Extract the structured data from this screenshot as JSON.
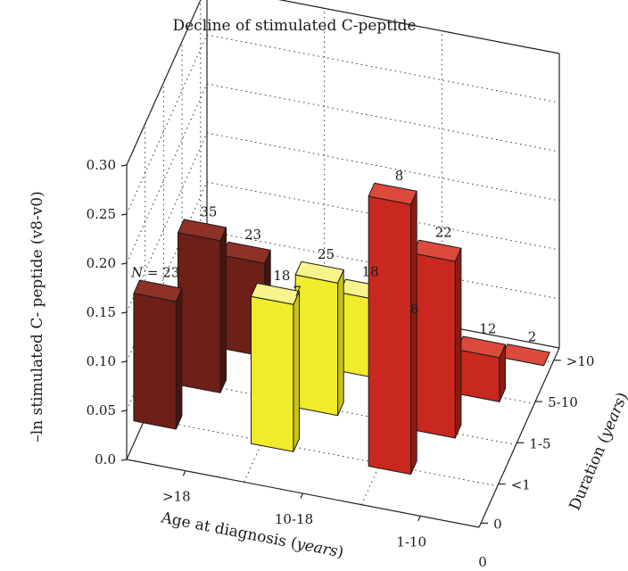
{
  "chart_data": {
    "type": "bar",
    "title": "Decline of stimulated C-peptide",
    "zlabel": "–ln stimulated C- peptide (v8-v0)",
    "xlabel": "Age at diagnosis (years)",
    "ylabel": "Duration (years)",
    "zlim": [
      0,
      0.3
    ],
    "z_ticks": [
      "0.0",
      "0.05",
      "0.10",
      "0.15",
      "0.20",
      "0.25",
      "0.30"
    ],
    "age_groups": [
      ">18",
      "10-18",
      "1-10"
    ],
    "age_extra_tick": "0",
    "duration_categories": [
      "0",
      "<1",
      "1-5",
      "5-10",
      ">10"
    ],
    "n_prefix": "N = ",
    "grid": true,
    "bars": [
      {
        "age": ">18",
        "duration": "<1",
        "value": 0.13,
        "n": "23"
      },
      {
        "age": ">18",
        "duration": "1-5",
        "value": 0.155,
        "n": "35"
      },
      {
        "age": ">18",
        "duration": "5-10",
        "value": 0.095,
        "n": "23"
      },
      {
        "age": ">18",
        "duration": ">10",
        "value": 0.0,
        "n": "7"
      },
      {
        "age": "10-18",
        "duration": "<1",
        "value": 0.15,
        "n": "18"
      },
      {
        "age": "10-18",
        "duration": "1-5",
        "value": 0.135,
        "n": "25"
      },
      {
        "age": "10-18",
        "duration": "5-10",
        "value": 0.08,
        "n": "18"
      },
      {
        "age": "10-18",
        "duration": ">10",
        "value": 0.005,
        "n": "8"
      },
      {
        "age": "1-10",
        "duration": "<1",
        "value": 0.275,
        "n": "8"
      },
      {
        "age": "1-10",
        "duration": "1-5",
        "value": 0.18,
        "n": "22"
      },
      {
        "age": "1-10",
        "duration": "5-10",
        "value": 0.045,
        "n": "12"
      },
      {
        "age": "1-10",
        "duration": ">10",
        "value": 0.0,
        "n": "2"
      }
    ],
    "colors": {
      ">18": {
        "front": "#6e1f17",
        "side": "#4a130d",
        "top": "#8e3127"
      },
      "10-18": {
        "front": "#f0ec2c",
        "side": "#c9c21a",
        "top": "#f7f48c"
      },
      "1-10": {
        "front": "#c8281d",
        "side": "#8f1a12",
        "top": "#dc4a3c"
      }
    }
  }
}
